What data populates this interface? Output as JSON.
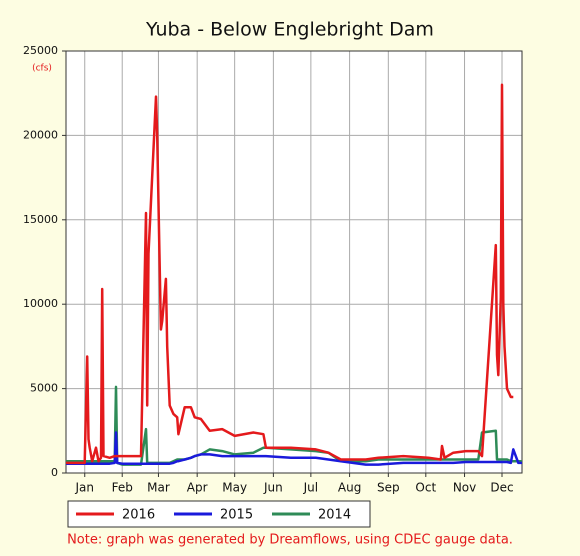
{
  "chart_data": {
    "type": "line",
    "title": "Yuba - Below Englebright Dam",
    "y_label": "(cfs)",
    "note": "Note: graph was generated by Dreamflows, using CDEC gauge data.",
    "x": [
      0,
      10,
      15,
      17,
      18,
      19,
      21,
      24,
      26,
      28,
      29,
      30,
      35,
      39,
      40,
      41,
      45,
      55,
      60,
      64,
      65,
      66,
      72,
      73,
      76,
      77,
      80,
      81,
      83,
      86,
      89,
      90,
      95,
      100,
      103,
      108,
      115,
      125,
      135,
      150,
      158,
      160,
      180,
      200,
      210,
      220,
      240,
      250,
      270,
      290,
      300,
      301,
      303,
      310,
      320,
      325,
      326,
      330,
      333,
      344,
      345,
      346,
      348,
      349,
      350,
      351,
      353,
      356,
      358,
      362,
      365
    ],
    "xlim": [
      0,
      365
    ],
    "xticks": [
      {
        "value": 15,
        "label": "Jan"
      },
      {
        "value": 45,
        "label": "Feb"
      },
      {
        "value": 74,
        "label": "Mar"
      },
      {
        "value": 105,
        "label": "Apr"
      },
      {
        "value": 135,
        "label": "May"
      },
      {
        "value": 166,
        "label": "Jun"
      },
      {
        "value": 196,
        "label": "Jul"
      },
      {
        "value": 227,
        "label": "Aug"
      },
      {
        "value": 258,
        "label": "Sep"
      },
      {
        "value": 288,
        "label": "Oct"
      },
      {
        "value": 319,
        "label": "Nov"
      },
      {
        "value": 349,
        "label": "Dec"
      }
    ],
    "ylim": [
      0,
      25000
    ],
    "yticks": [
      0,
      5000,
      10000,
      15000,
      20000,
      25000
    ],
    "grid": true,
    "series": [
      {
        "name": "2016",
        "color": "#e41a1c",
        "values": [
          600,
          600,
          600,
          6900,
          2000,
          1500,
          700,
          1500,
          700,
          900,
          10900,
          1000,
          900,
          1000,
          1000,
          1000,
          1000,
          1000,
          1000,
          15400,
          4000,
          13000,
          22300,
          20000,
          8500,
          9000,
          11500,
          7500,
          4000,
          3500,
          3300,
          2300,
          3900,
          3900,
          3300,
          3200,
          2500,
          2600,
          2200,
          2400,
          2300,
          1500,
          1500,
          1400,
          1200,
          800,
          800,
          900,
          1000,
          900,
          800,
          1600,
          900,
          1200,
          1300,
          1300,
          1300,
          1300,
          1000,
          13500,
          7000,
          5800,
          10400,
          23000,
          10000,
          7500,
          5000,
          4500,
          4500,
          null,
          null
        ]
      },
      {
        "name": "2015",
        "color": "#1a1adb",
        "values": [
          550,
          550,
          550,
          550,
          550,
          550,
          550,
          550,
          550,
          550,
          550,
          550,
          550,
          600,
          2400,
          600,
          550,
          550,
          550,
          550,
          550,
          550,
          550,
          550,
          550,
          550,
          550,
          550,
          550,
          600,
          700,
          700,
          800,
          900,
          1000,
          1100,
          1100,
          1000,
          1000,
          1000,
          1000,
          1000,
          900,
          900,
          800,
          700,
          500,
          500,
          600,
          600,
          600,
          600,
          600,
          600,
          650,
          650,
          650,
          650,
          650,
          650,
          650,
          650,
          650,
          650,
          650,
          650,
          650,
          600,
          1400,
          600,
          600
        ]
      },
      {
        "name": "2014",
        "color": "#2e8b57",
        "values": [
          700,
          700,
          700,
          700,
          700,
          700,
          700,
          700,
          700,
          700,
          700,
          700,
          700,
          700,
          5100,
          600,
          500,
          500,
          500,
          2600,
          600,
          600,
          600,
          600,
          600,
          600,
          600,
          600,
          600,
          700,
          800,
          800,
          800,
          900,
          1000,
          1100,
          1400,
          1300,
          1100,
          1200,
          1500,
          1500,
          1400,
          1300,
          1200,
          700,
          700,
          800,
          800,
          800,
          800,
          800,
          800,
          800,
          800,
          800,
          800,
          800,
          2400,
          2500,
          800,
          800,
          800,
          800,
          800,
          800,
          800,
          700,
          700,
          700,
          700
        ]
      }
    ]
  }
}
